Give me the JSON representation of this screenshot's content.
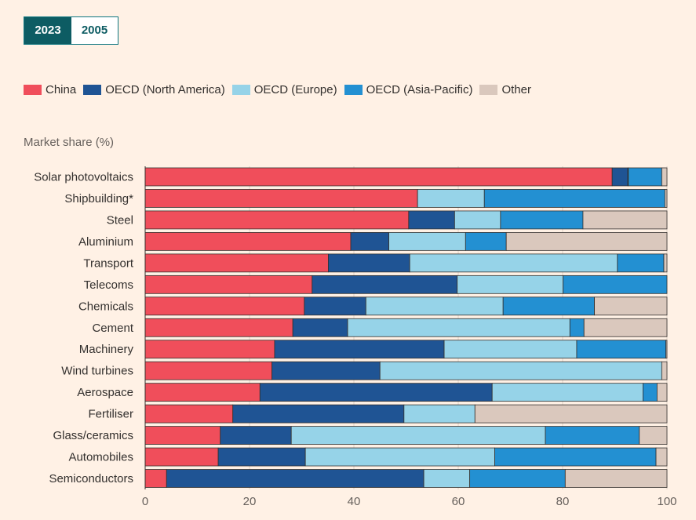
{
  "toggle": {
    "options": [
      "2023",
      "2005"
    ],
    "selected": "2023"
  },
  "colors": {
    "China": "#f04e5b",
    "OECD (North America)": "#1f5494",
    "OECD (Europe)": "#96d3e8",
    "OECD (Asia-Pacific)": "#2390d2",
    "Other": "#dac8bd"
  },
  "chart_data": {
    "type": "bar",
    "orientation": "horizontal",
    "stacked": true,
    "ylabel": "Market share (%)",
    "xlim": [
      0,
      100
    ],
    "xticks": [
      0,
      20,
      40,
      60,
      80,
      100
    ],
    "grid": true,
    "legend_position": "top",
    "categories": [
      "Solar photovoltaics",
      "Shipbuilding*",
      "Steel",
      "Aluminium",
      "Transport",
      "Telecoms",
      "Chemicals",
      "Cement",
      "Machinery",
      "Wind turbines",
      "Aerospace",
      "Fertiliser",
      "Glass/ceramics",
      "Automobiles",
      "Semiconductors"
    ],
    "series": [
      {
        "name": "China",
        "values": [
          89.5,
          52.2,
          50.5,
          39.4,
          35.1,
          32.0,
          30.5,
          28.3,
          24.8,
          24.3,
          22.0,
          16.8,
          14.4,
          14.0,
          4.1
        ]
      },
      {
        "name": "OECD (North America)",
        "values": [
          3.0,
          0.0,
          8.8,
          7.3,
          15.6,
          27.8,
          11.8,
          10.5,
          32.5,
          20.7,
          44.5,
          32.8,
          13.6,
          16.7,
          49.3
        ]
      },
      {
        "name": "OECD (Europe)",
        "values": [
          0.1,
          12.8,
          8.8,
          14.7,
          39.8,
          20.3,
          26.3,
          42.6,
          25.4,
          54.0,
          28.9,
          13.6,
          48.7,
          36.3,
          8.8
        ]
      },
      {
        "name": "OECD (Asia-Pacific)",
        "values": [
          6.4,
          34.6,
          15.8,
          7.8,
          8.9,
          19.9,
          17.5,
          2.7,
          17.1,
          0.0,
          2.7,
          0.0,
          18.0,
          30.9,
          18.3
        ]
      },
      {
        "name": "Other",
        "values": [
          1.0,
          0.4,
          16.1,
          30.8,
          0.6,
          0.0,
          13.9,
          15.9,
          0.2,
          1.0,
          1.9,
          36.8,
          5.3,
          2.1,
          19.5
        ]
      }
    ]
  }
}
